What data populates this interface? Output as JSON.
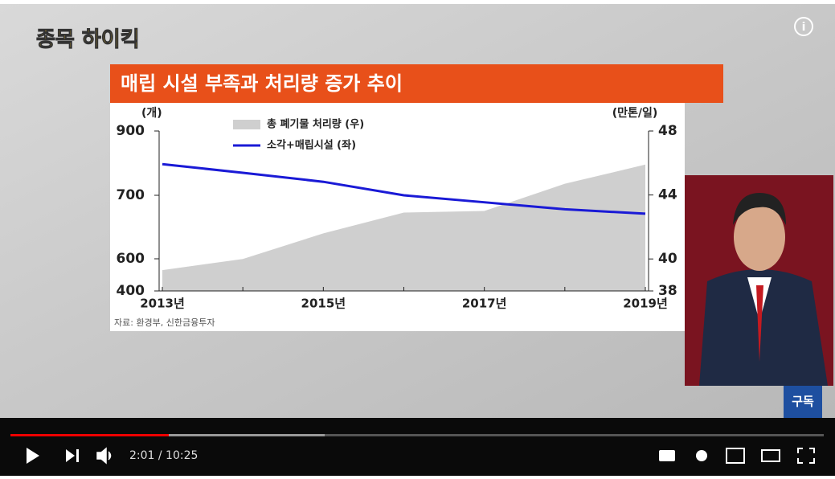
{
  "player": {
    "logo": "종목 하이킥",
    "subscribe": "구독",
    "time": "2:01 / 10:25"
  },
  "chart_data": {
    "type": "line-area",
    "title": "매립 시설 부족과 처리량 증가 추이",
    "y_label": "(개)",
    "y2_label": "(만톤/일)",
    "source": "자료: 환경부, 신한금융투자",
    "categories": [
      "2013년",
      null,
      "2015년",
      null,
      "2017년",
      null,
      "2019년"
    ],
    "ylim": [
      400,
      900
    ],
    "yticks": [
      400,
      600,
      700,
      900
    ],
    "y2lim": [
      38,
      48
    ],
    "y2ticks": [
      38,
      40,
      44,
      48
    ],
    "series": [
      {
        "name": "총 폐기물 처리량 (우)",
        "kind": "area",
        "axis": "y2",
        "color": "#cfcfcf",
        "values": [
          39.3,
          40,
          41.6,
          42.9,
          43.0,
          44.7,
          45.9
        ]
      },
      {
        "name": "소각+매립시설 (좌)",
        "kind": "line",
        "color": "#1a1ad6",
        "values": [
          797,
          770,
          742,
          700,
          689,
          678,
          671
        ]
      }
    ]
  }
}
